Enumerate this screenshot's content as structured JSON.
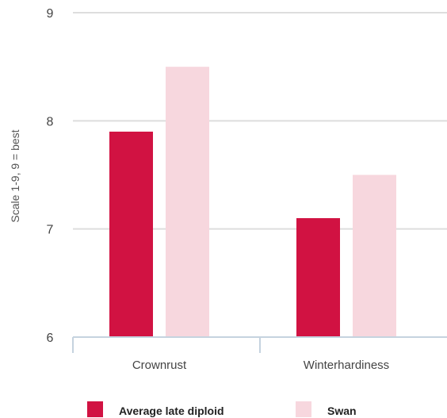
{
  "chart_data": {
    "type": "bar",
    "categories": [
      "Crownrust",
      "Winterhardiness"
    ],
    "series": [
      {
        "name": "Average late diploid",
        "values": [
          7.9,
          7.1
        ],
        "color": "#d11242"
      },
      {
        "name": "Swan",
        "values": [
          8.5,
          7.5
        ],
        "color": "#f7d7de"
      }
    ],
    "ylabel": "Scale 1-9, 9 = best",
    "ylim": [
      6,
      9
    ],
    "yticks": [
      6,
      7,
      8,
      9
    ],
    "grid": true,
    "legend_position": "bottom"
  },
  "colors": {
    "grid": "#dddddd",
    "axis": "#c5d3df"
  }
}
